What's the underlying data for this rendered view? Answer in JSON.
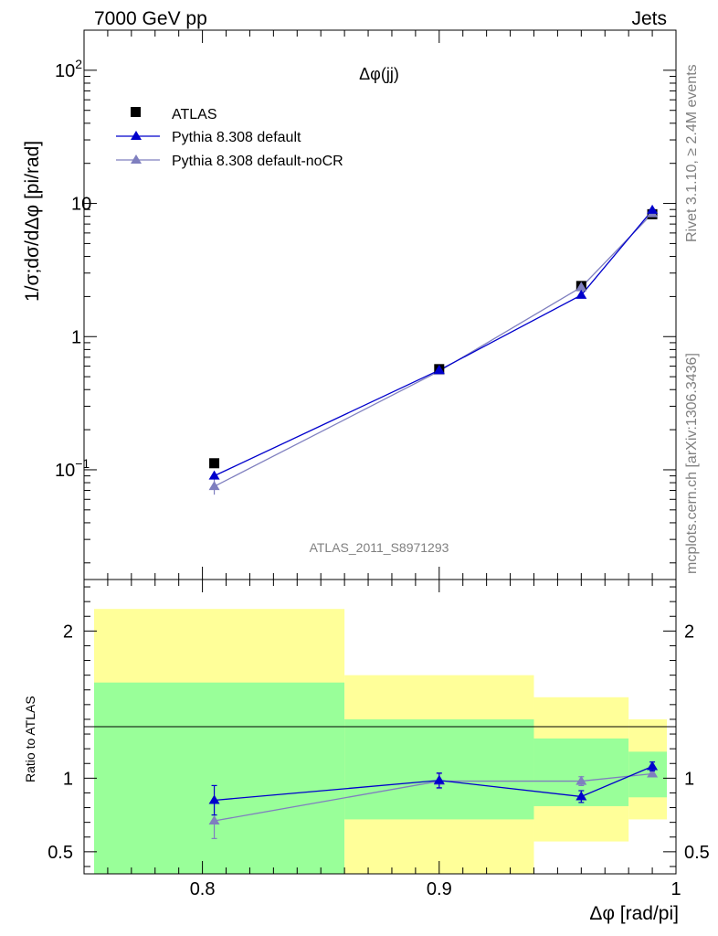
{
  "header": {
    "left": "7000 GeV pp",
    "right": "Jets"
  },
  "side_labels": {
    "rivet": "Rivet 3.1.10, ≥ 2.4M events",
    "mcplots": "mcplots.cern.ch [arXiv:1306.3436]"
  },
  "colors": {
    "atlas": "#000000",
    "pythia_default": "#0000cc",
    "pythia_nocr": "#7f7fbf",
    "band_inner": "#99ff99",
    "band_outer": "#ffff99"
  },
  "chart_data": [
    {
      "type": "scatter",
      "title": "Δφ(jj)",
      "watermark": "ATLAS_2011_S8971293",
      "ylabel": "1/σ;dσ/dΔφ [pi/rad]",
      "yscale": "log",
      "xlim": [
        0.75,
        1.0
      ],
      "ylim": [
        0.015,
        200
      ],
      "y_ticks": [
        {
          "value": 0.1,
          "base": "10",
          "exp": "−1"
        },
        {
          "value": 1,
          "base": "1",
          "exp": ""
        },
        {
          "value": 10,
          "base": "10",
          "exp": ""
        },
        {
          "value": 100,
          "base": "10",
          "exp": "2"
        }
      ],
      "legend": [
        "ATLAS",
        "Pythia 8.308 default",
        "Pythia 8.308 default-noCR"
      ],
      "legend_position": "top-left",
      "series": [
        {
          "name": "ATLAS",
          "marker": "square",
          "x": [
            0.805,
            0.9,
            0.96,
            0.99
          ],
          "y": [
            0.112,
            0.57,
            2.4,
            8.3
          ]
        },
        {
          "name": "Pythia 8.308 default",
          "marker": "triangle",
          "x": [
            0.805,
            0.9,
            0.96,
            0.99
          ],
          "y": [
            0.09,
            0.56,
            2.05,
            8.9
          ]
        },
        {
          "name": "Pythia 8.308 default-noCR",
          "marker": "triangle",
          "x": [
            0.805,
            0.9,
            0.96,
            0.99
          ],
          "y": [
            0.075,
            0.55,
            2.35,
            8.4
          ]
        }
      ]
    },
    {
      "type": "line",
      "xlabel": "Δφ [rad/pi]",
      "ylabel": "Ratio to ATLAS",
      "xlim": [
        0.75,
        1.0
      ],
      "ylim": [
        0.35,
        2.35
      ],
      "x_ticks": [
        "0.8",
        "0.9",
        "1"
      ],
      "x_tick_values": [
        0.8,
        0.9,
        1.0
      ],
      "y_ticks": [
        "0.5",
        "1",
        "2"
      ],
      "y_tick_values": [
        0.5,
        1,
        2
      ],
      "bands": [
        {
          "x0": 0.75,
          "x1": 0.86,
          "outer": [
            0.35,
            2.15
          ],
          "inner": [
            0.35,
            1.65
          ]
        },
        {
          "x0": 0.86,
          "x1": 0.94,
          "outer": [
            0.35,
            1.7
          ],
          "inner": [
            0.72,
            1.4
          ]
        },
        {
          "x0": 0.94,
          "x1": 0.98,
          "outer": [
            0.57,
            1.55
          ],
          "inner": [
            0.81,
            1.27
          ]
        },
        {
          "x0": 0.98,
          "x1": 1.0,
          "outer": [
            0.72,
            1.4
          ],
          "inner": [
            0.87,
            1.18
          ]
        }
      ],
      "series": [
        {
          "name": "Pythia 8.308 default",
          "x": [
            0.805,
            0.9,
            0.96,
            0.99
          ],
          "y": [
            0.85,
            0.985,
            0.875,
            1.08
          ],
          "err": [
            0.1,
            0.05,
            0.04,
            0.03
          ]
        },
        {
          "name": "Pythia 8.308 default-noCR",
          "x": [
            0.805,
            0.9,
            0.96,
            0.99
          ],
          "y": [
            0.71,
            0.98,
            0.98,
            1.03
          ],
          "err": [
            0.12,
            0.05,
            0.03,
            0.02
          ]
        }
      ]
    }
  ]
}
